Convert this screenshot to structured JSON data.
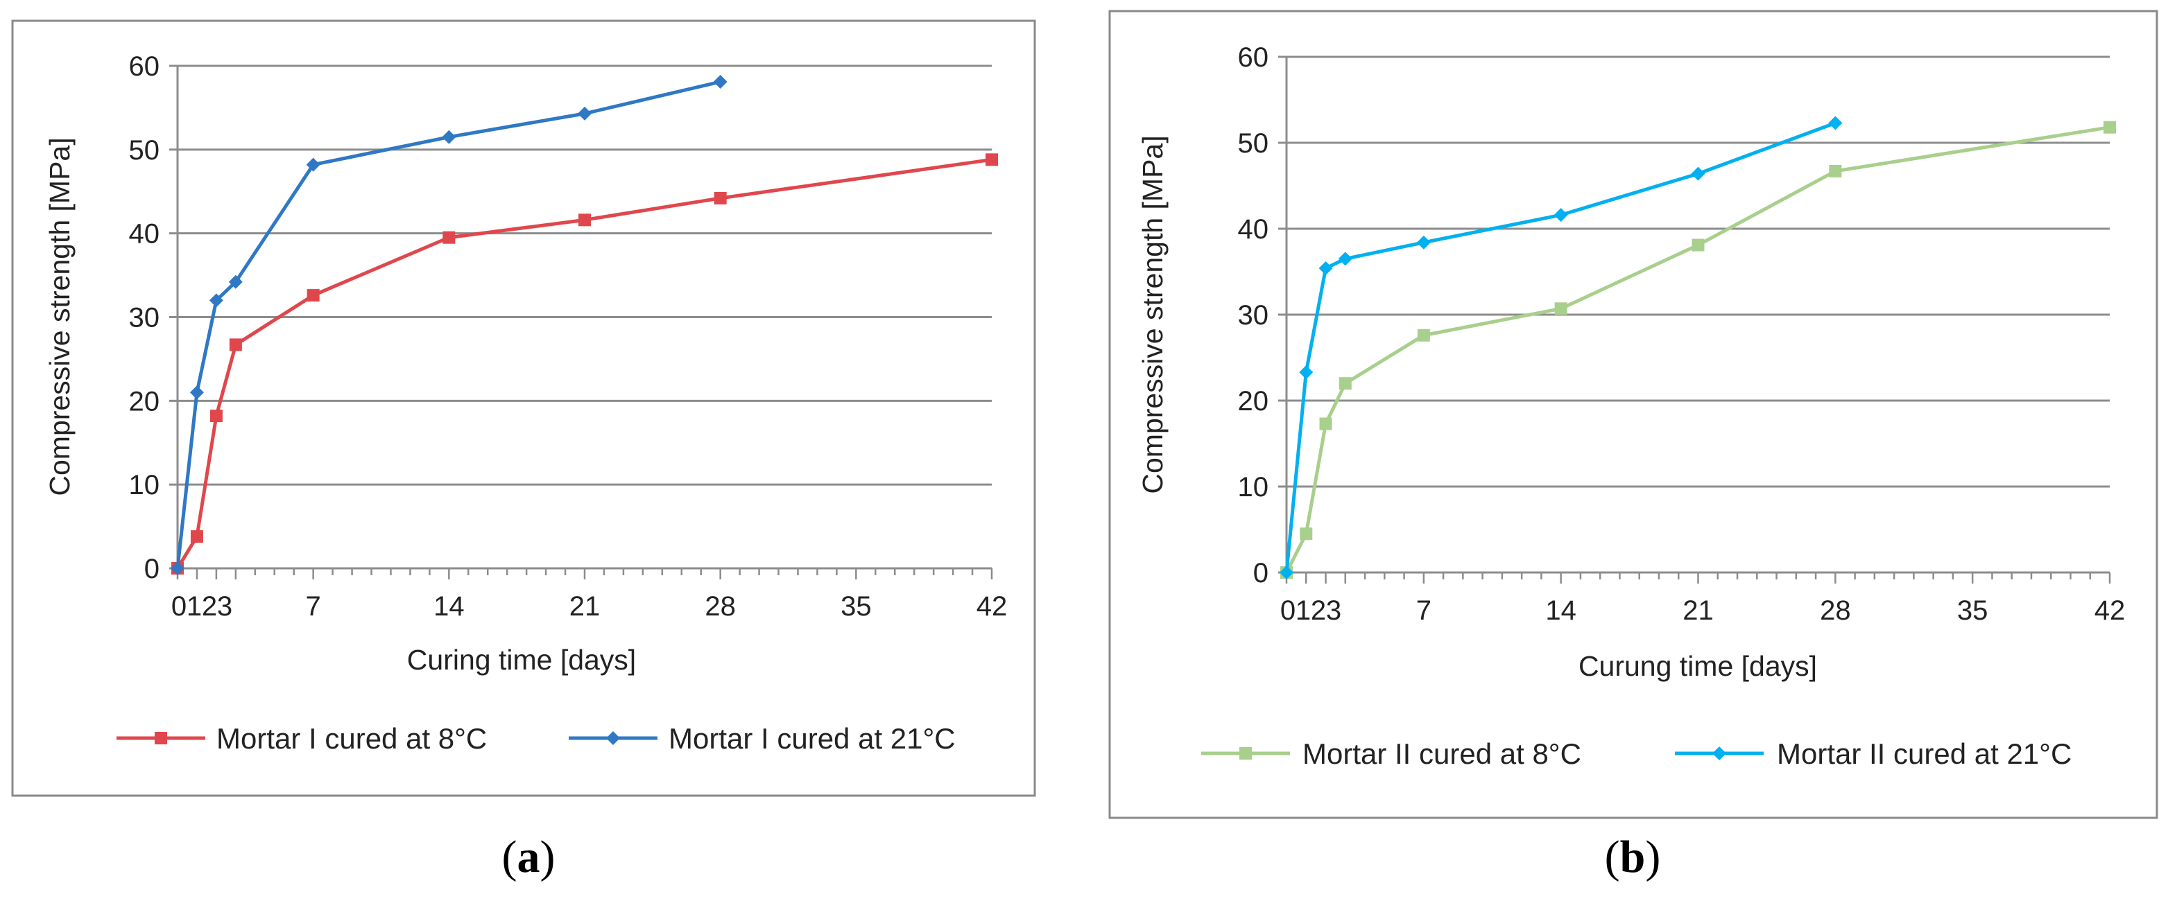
{
  "chart_data": [
    {
      "type": "line",
      "panel_label_pre": "(",
      "panel_label_letter": "a",
      "panel_label_post": ")",
      "xlabel": "Curing time [days]",
      "ylabel": "Compressive strength [MPa]",
      "xlim": [
        0,
        42
      ],
      "ylim": [
        0,
        60
      ],
      "xticks": [
        0,
        1,
        2,
        3,
        7,
        14,
        21,
        28,
        35,
        42
      ],
      "yticks": [
        0,
        10,
        20,
        30,
        40,
        50,
        60
      ],
      "grid": "horizontal",
      "legend_position": "bottom",
      "series": [
        {
          "name": "Mortar I cured at 8°C",
          "color": "#e0474c",
          "marker": "square",
          "x": [
            0,
            1,
            2,
            3,
            7,
            14,
            21,
            28,
            42
          ],
          "y": [
            0,
            3.8,
            18.2,
            26.7,
            32.6,
            39.5,
            41.6,
            44.2,
            48.8
          ]
        },
        {
          "name": "Mortar I cured at 21°C",
          "color": "#2f78c5",
          "marker": "diamond",
          "x": [
            0,
            1,
            2,
            3,
            7,
            14,
            21,
            28
          ],
          "y": [
            0,
            21.0,
            32.0,
            34.2,
            48.2,
            51.5,
            54.3,
            58.1
          ]
        }
      ]
    },
    {
      "type": "line",
      "panel_label_pre": "(",
      "panel_label_letter": "b",
      "panel_label_post": ")",
      "xlabel": "Curung time [days]",
      "ylabel": "Compressive strength [MPa]",
      "xlim": [
        0,
        42
      ],
      "ylim": [
        0,
        60
      ],
      "xticks": [
        0,
        1,
        2,
        3,
        7,
        14,
        21,
        28,
        35,
        42
      ],
      "yticks": [
        0,
        10,
        20,
        30,
        40,
        50,
        60
      ],
      "grid": "horizontal",
      "legend_position": "bottom",
      "series": [
        {
          "name": "Mortar II cured at 8°C",
          "color": "#a8cf8c",
          "marker": "square",
          "x": [
            0,
            1,
            2,
            3,
            7,
            14,
            21,
            28,
            42
          ],
          "y": [
            0,
            4.5,
            17.3,
            22.0,
            27.6,
            30.7,
            38.1,
            46.7,
            51.8
          ]
        },
        {
          "name": "Mortar II cured at 21°C",
          "color": "#00b0f0",
          "marker": "diamond",
          "x": [
            0,
            1,
            2,
            3,
            7,
            14,
            21,
            28
          ],
          "y": [
            0,
            23.3,
            35.4,
            36.5,
            38.4,
            41.6,
            46.4,
            52.3
          ]
        }
      ]
    }
  ]
}
